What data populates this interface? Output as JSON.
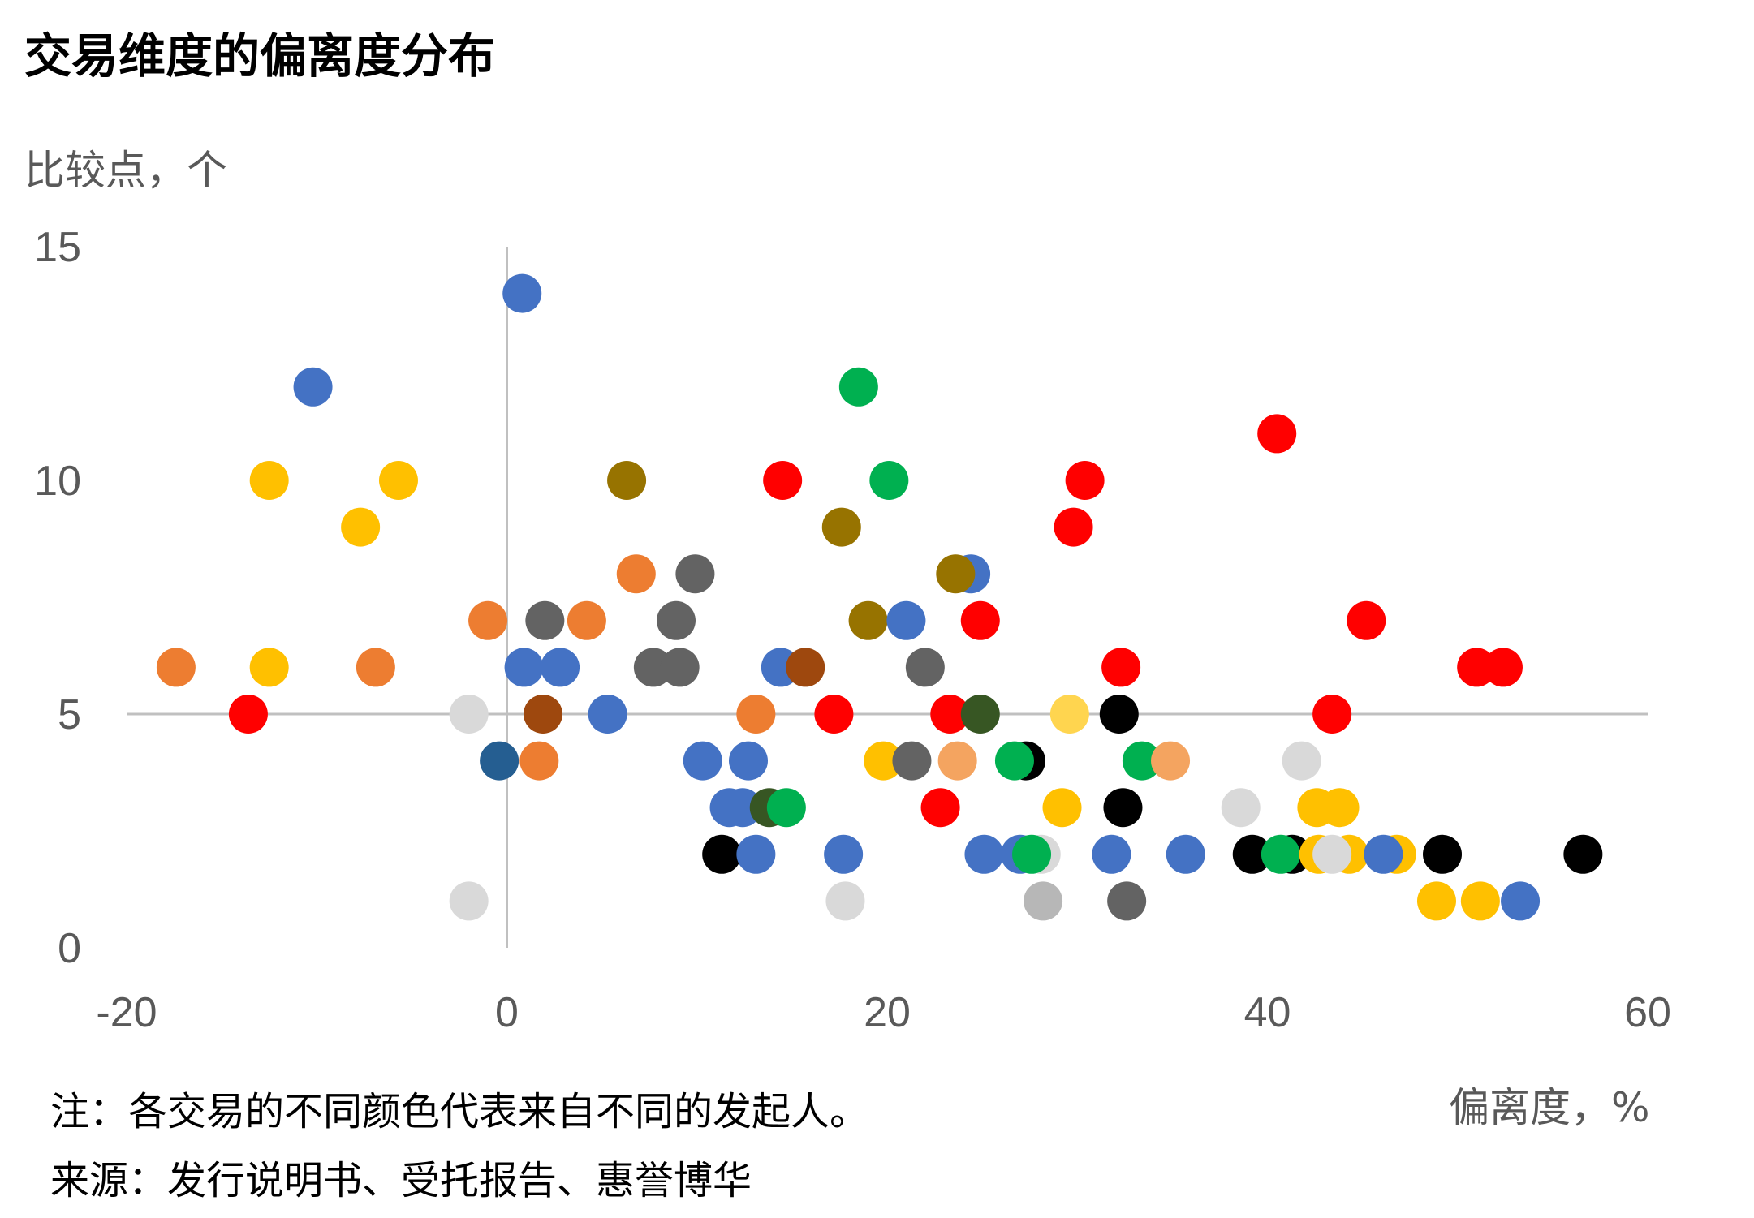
{
  "chart_data": {
    "type": "scatter",
    "title": "交易维度的偏离度分布",
    "ylabel": "比较点，个",
    "xlabel": "偏离度，%",
    "xlim": [
      -20,
      60
    ],
    "ylim": [
      0,
      15
    ],
    "xticks": [
      "-20",
      "0",
      "20",
      "40",
      "60"
    ],
    "yticks": [
      "0",
      "5",
      "10",
      "15"
    ],
    "grid": false,
    "legend": "none",
    "note": "注：各交易的不同颜色代表来自不同的发起人。",
    "source": "来源：发行说明书、受托报告、惠誉博华",
    "colors": {
      "blue": "#4472C4",
      "yellow": "#FFC000",
      "red": "#FF0000",
      "orange": "#ED7D31",
      "green": "#00B050",
      "gray": "#636363",
      "lightgray": "#D9D9D9",
      "olive": "#977300",
      "black": "#000000",
      "brown": "#9E480E",
      "darkgreen": "#375623",
      "navy": "#255E91",
      "lightorange": "#F4A460",
      "silver": "#B7B7B7",
      "paleyellow": "#FFD54F"
    },
    "points": [
      {
        "x": 0.8,
        "y": 14,
        "c": "blue"
      },
      {
        "x": -10.2,
        "y": 12,
        "c": "blue"
      },
      {
        "x": 18.5,
        "y": 12,
        "c": "green"
      },
      {
        "x": 40.5,
        "y": 11,
        "c": "red"
      },
      {
        "x": -12.5,
        "y": 10,
        "c": "yellow"
      },
      {
        "x": -5.7,
        "y": 10,
        "c": "yellow"
      },
      {
        "x": 6.3,
        "y": 10,
        "c": "olive"
      },
      {
        "x": 14.5,
        "y": 10,
        "c": "red"
      },
      {
        "x": 20.1,
        "y": 10,
        "c": "green"
      },
      {
        "x": 30.4,
        "y": 10,
        "c": "red"
      },
      {
        "x": -7.7,
        "y": 9,
        "c": "yellow"
      },
      {
        "x": 17.6,
        "y": 9,
        "c": "olive"
      },
      {
        "x": 29.8,
        "y": 9,
        "c": "red"
      },
      {
        "x": 6.8,
        "y": 8,
        "c": "orange"
      },
      {
        "x": 9.9,
        "y": 8,
        "c": "gray"
      },
      {
        "x": 24.4,
        "y": 8,
        "c": "blue"
      },
      {
        "x": 23.6,
        "y": 8,
        "c": "olive"
      },
      {
        "x": -1.0,
        "y": 7,
        "c": "orange"
      },
      {
        "x": 2.0,
        "y": 7,
        "c": "gray"
      },
      {
        "x": 4.2,
        "y": 7,
        "c": "orange"
      },
      {
        "x": 8.9,
        "y": 7,
        "c": "gray"
      },
      {
        "x": 19.0,
        "y": 7,
        "c": "olive"
      },
      {
        "x": 21.0,
        "y": 7,
        "c": "blue"
      },
      {
        "x": 24.9,
        "y": 7,
        "c": "red"
      },
      {
        "x": 45.2,
        "y": 7,
        "c": "red"
      },
      {
        "x": -17.4,
        "y": 6,
        "c": "orange"
      },
      {
        "x": -12.5,
        "y": 6,
        "c": "yellow"
      },
      {
        "x": -6.9,
        "y": 6,
        "c": "orange"
      },
      {
        "x": 0.9,
        "y": 6,
        "c": "blue"
      },
      {
        "x": 2.8,
        "y": 6,
        "c": "blue"
      },
      {
        "x": 7.7,
        "y": 6,
        "c": "gray"
      },
      {
        "x": 9.1,
        "y": 6,
        "c": "gray"
      },
      {
        "x": 14.4,
        "y": 6,
        "c": "blue"
      },
      {
        "x": 15.7,
        "y": 6,
        "c": "brown"
      },
      {
        "x": 22.0,
        "y": 6,
        "c": "gray"
      },
      {
        "x": 32.3,
        "y": 6,
        "c": "red"
      },
      {
        "x": 51.0,
        "y": 6,
        "c": "red"
      },
      {
        "x": 52.4,
        "y": 6,
        "c": "red"
      },
      {
        "x": -13.6,
        "y": 5,
        "c": "red"
      },
      {
        "x": -2.0,
        "y": 5,
        "c": "lightgray"
      },
      {
        "x": 1.9,
        "y": 5,
        "c": "brown"
      },
      {
        "x": 5.3,
        "y": 5,
        "c": "blue"
      },
      {
        "x": 13.1,
        "y": 5,
        "c": "orange"
      },
      {
        "x": 17.2,
        "y": 5,
        "c": "red"
      },
      {
        "x": 23.3,
        "y": 5,
        "c": "red"
      },
      {
        "x": 24.9,
        "y": 5,
        "c": "darkgreen"
      },
      {
        "x": 29.6,
        "y": 5,
        "c": "paleyellow"
      },
      {
        "x": 32.2,
        "y": 5,
        "c": "black"
      },
      {
        "x": 43.4,
        "y": 5,
        "c": "red"
      },
      {
        "x": -0.4,
        "y": 4,
        "c": "navy"
      },
      {
        "x": 1.7,
        "y": 4,
        "c": "orange"
      },
      {
        "x": 10.3,
        "y": 4,
        "c": "blue"
      },
      {
        "x": 12.7,
        "y": 4,
        "c": "blue"
      },
      {
        "x": 19.8,
        "y": 4,
        "c": "yellow"
      },
      {
        "x": 21.3,
        "y": 4,
        "c": "gray"
      },
      {
        "x": 23.7,
        "y": 4,
        "c": "lightorange"
      },
      {
        "x": 27.3,
        "y": 4,
        "c": "black"
      },
      {
        "x": 26.7,
        "y": 4,
        "c": "green"
      },
      {
        "x": 33.4,
        "y": 4,
        "c": "green"
      },
      {
        "x": 34.9,
        "y": 4,
        "c": "lightorange"
      },
      {
        "x": 41.8,
        "y": 4,
        "c": "lightgray"
      },
      {
        "x": 11.7,
        "y": 3,
        "c": "blue"
      },
      {
        "x": 12.4,
        "y": 3,
        "c": "blue"
      },
      {
        "x": 13.8,
        "y": 3,
        "c": "darkgreen"
      },
      {
        "x": 14.7,
        "y": 3,
        "c": "green"
      },
      {
        "x": 22.8,
        "y": 3,
        "c": "red"
      },
      {
        "x": 29.2,
        "y": 3,
        "c": "yellow"
      },
      {
        "x": 32.4,
        "y": 3,
        "c": "black"
      },
      {
        "x": 38.6,
        "y": 3,
        "c": "lightgray"
      },
      {
        "x": 42.6,
        "y": 3,
        "c": "yellow"
      },
      {
        "x": 43.8,
        "y": 3,
        "c": "yellow"
      },
      {
        "x": 11.3,
        "y": 2,
        "c": "black"
      },
      {
        "x": 13.1,
        "y": 2,
        "c": "blue"
      },
      {
        "x": 17.7,
        "y": 2,
        "c": "blue"
      },
      {
        "x": 25.1,
        "y": 2,
        "c": "blue"
      },
      {
        "x": 27.0,
        "y": 2,
        "c": "blue"
      },
      {
        "x": 28.1,
        "y": 2,
        "c": "lightgray"
      },
      {
        "x": 27.6,
        "y": 2,
        "c": "green"
      },
      {
        "x": 31.8,
        "y": 2,
        "c": "blue"
      },
      {
        "x": 35.7,
        "y": 2,
        "c": "blue"
      },
      {
        "x": 39.2,
        "y": 2,
        "c": "black"
      },
      {
        "x": 41.3,
        "y": 2,
        "c": "black"
      },
      {
        "x": 40.7,
        "y": 2,
        "c": "green"
      },
      {
        "x": 42.7,
        "y": 2,
        "c": "yellow"
      },
      {
        "x": 44.3,
        "y": 2,
        "c": "yellow"
      },
      {
        "x": 43.4,
        "y": 2,
        "c": "lightgray"
      },
      {
        "x": 46.8,
        "y": 2,
        "c": "yellow"
      },
      {
        "x": 46.1,
        "y": 2,
        "c": "blue"
      },
      {
        "x": 49.2,
        "y": 2,
        "c": "black"
      },
      {
        "x": 56.6,
        "y": 2,
        "c": "black"
      },
      {
        "x": -2.0,
        "y": 1,
        "c": "lightgray"
      },
      {
        "x": 17.8,
        "y": 1,
        "c": "lightgray"
      },
      {
        "x": 28.2,
        "y": 1,
        "c": "silver"
      },
      {
        "x": 32.6,
        "y": 1,
        "c": "gray"
      },
      {
        "x": 48.9,
        "y": 1,
        "c": "yellow"
      },
      {
        "x": 51.2,
        "y": 1,
        "c": "yellow"
      },
      {
        "x": 53.3,
        "y": 1,
        "c": "blue"
      }
    ]
  }
}
